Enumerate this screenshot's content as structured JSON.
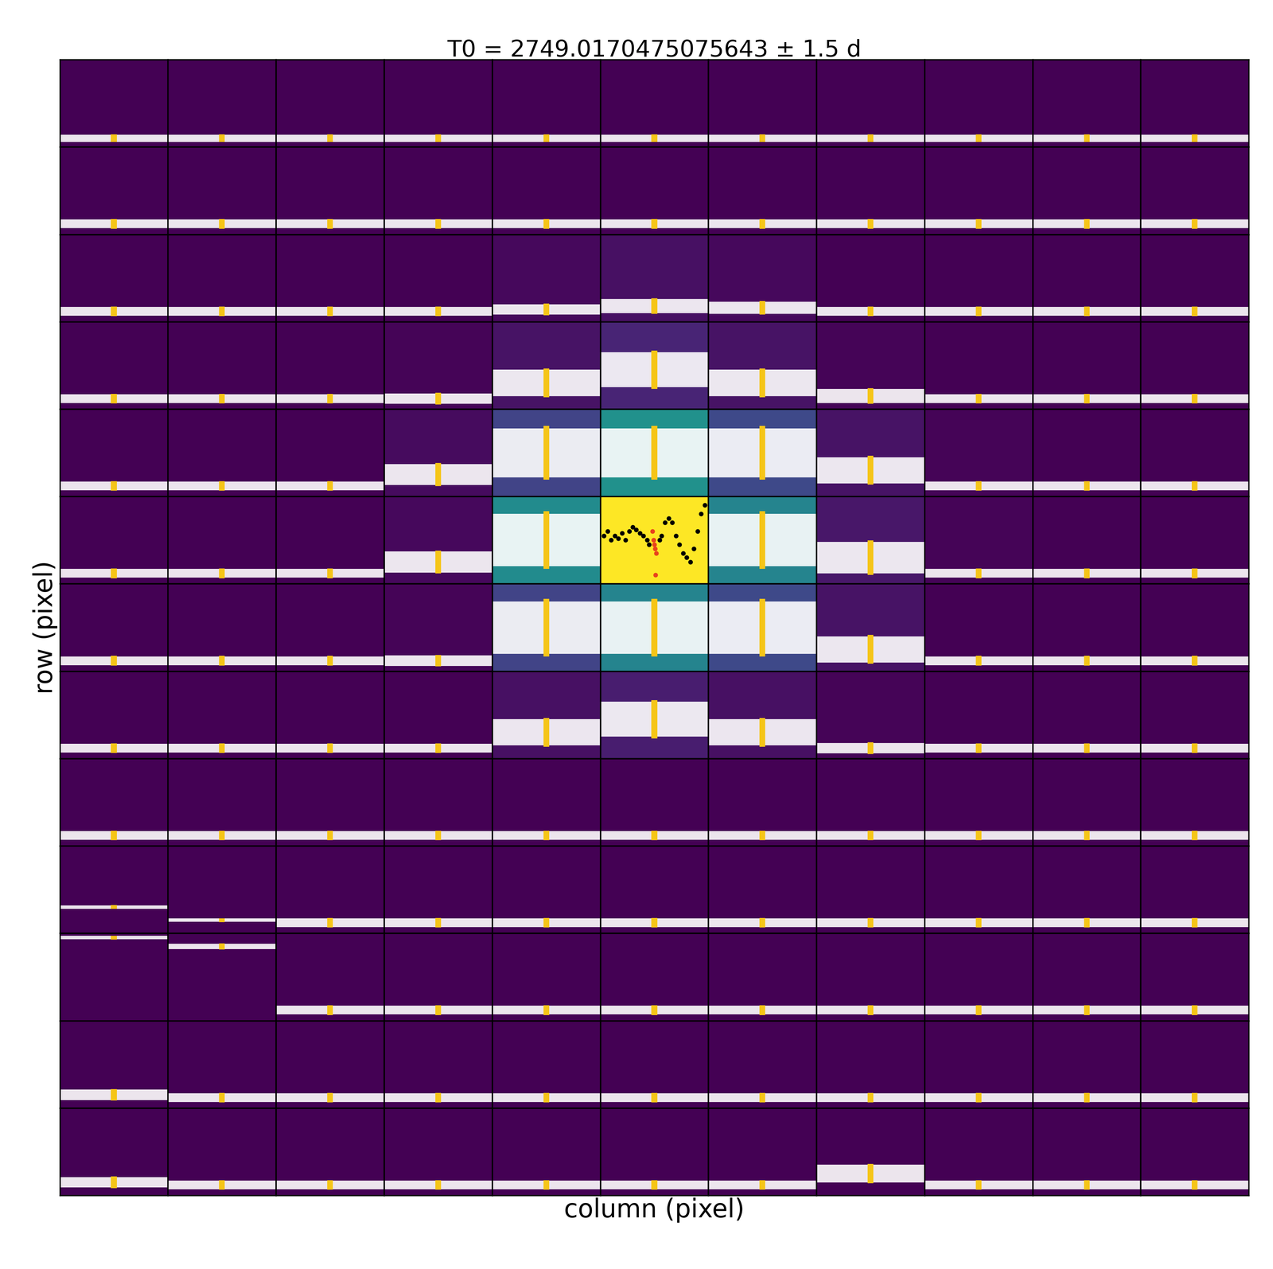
{
  "chart_data": {
    "type": "pixel_grid",
    "title": "T0 = 2749.0170475075643 ± 1.5 d",
    "xlabel": "column (pixel)",
    "ylabel": "row (pixel)",
    "tick_labels": false,
    "xlim": [
      -1.5,
      1.5
    ],
    "ylim": [
      0,
      1
    ],
    "color_range": [
      0,
      1
    ],
    "cells": [
      [
        0,
        0,
        0,
        0,
        0,
        0,
        0,
        0,
        0,
        0,
        0
      ],
      [
        0,
        0,
        0,
        0,
        0,
        0,
        0,
        0,
        0,
        0,
        0
      ],
      [
        0,
        0,
        0,
        0,
        0.02,
        0.04,
        0.02,
        0,
        0,
        0,
        0
      ],
      [
        0,
        0,
        0,
        0.01,
        0.05,
        0.1,
        0.05,
        0.01,
        0,
        0,
        0
      ],
      [
        0,
        0,
        0,
        0.03,
        0.2,
        0.5,
        0.22,
        0.05,
        0.01,
        0,
        0
      ],
      [
        0,
        0,
        0,
        0.02,
        0.48,
        1.0,
        0.45,
        0.06,
        0.01,
        0,
        0
      ],
      [
        0,
        0,
        0,
        0.01,
        0.2,
        0.45,
        0.22,
        0.05,
        0,
        0,
        0
      ],
      [
        0,
        0,
        0,
        0,
        0.04,
        0.08,
        0.04,
        0.01,
        0,
        0,
        0
      ],
      [
        0,
        0,
        0,
        0,
        0,
        0,
        0,
        0,
        0,
        0,
        0
      ],
      [
        0,
        0,
        0,
        0,
        0,
        0,
        0,
        0,
        0,
        0,
        0
      ],
      [
        0,
        0,
        0,
        0,
        0,
        0,
        0,
        0,
        0,
        0,
        0
      ],
      [
        0,
        0,
        0,
        0,
        0,
        0,
        0,
        0,
        0,
        0,
        0
      ],
      [
        0,
        0,
        0,
        0,
        0,
        0,
        0,
        0,
        0,
        0,
        0
      ]
    ],
    "level": [
      [
        0.1,
        0.1,
        0.1,
        0.1,
        0.1,
        0.1,
        0.1,
        0.1,
        0.1,
        0.1,
        0.1
      ],
      [
        0.12,
        0.12,
        0.12,
        0.12,
        0.12,
        0.12,
        0.12,
        0.12,
        0.12,
        0.12,
        0.12
      ],
      [
        0.12,
        0.12,
        0.12,
        0.12,
        0.14,
        0.18,
        0.16,
        0.12,
        0.12,
        0.12,
        0.12
      ],
      [
        0.12,
        0.12,
        0.12,
        0.12,
        0.3,
        0.45,
        0.3,
        0.15,
        0.12,
        0.12,
        0.12
      ],
      [
        0.12,
        0.12,
        0.12,
        0.25,
        0.5,
        0.5,
        0.5,
        0.3,
        0.12,
        0.12,
        0.12
      ],
      [
        0.12,
        0.12,
        0.12,
        0.25,
        0.5,
        null,
        0.5,
        0.3,
        0.12,
        0.12,
        0.12
      ],
      [
        0.12,
        0.12,
        0.12,
        0.12,
        0.5,
        0.5,
        0.5,
        0.25,
        0.12,
        0.12,
        0.12
      ],
      [
        0.12,
        0.12,
        0.12,
        0.12,
        0.3,
        0.45,
        0.3,
        0.12,
        0.12,
        0.12,
        0.12
      ],
      [
        0.12,
        0.12,
        0.12,
        0.12,
        0.12,
        0.12,
        0.12,
        0.12,
        0.12,
        0.12,
        0.12
      ],
      [
        0.3,
        0.15,
        0.12,
        0.12,
        0.12,
        0.12,
        0.12,
        0.12,
        0.12,
        0.12,
        0.12
      ],
      [
        0.95,
        0.85,
        0.12,
        0.12,
        0.12,
        0.12,
        0.12,
        0.12,
        0.12,
        0.12,
        0.12
      ],
      [
        0.15,
        0.12,
        0.12,
        0.12,
        0.12,
        0.12,
        0.12,
        0.12,
        0.12,
        0.12,
        0.12
      ],
      [
        0.15,
        0.12,
        0.12,
        0.12,
        0.12,
        0.12,
        0.12,
        0.25,
        0.12,
        0.12,
        0.12
      ]
    ],
    "spread": [
      [
        0.04,
        0.04,
        0.04,
        0.04,
        0.04,
        0.04,
        0.04,
        0.04,
        0.04,
        0.04,
        0.04
      ],
      [
        0.05,
        0.05,
        0.05,
        0.05,
        0.05,
        0.05,
        0.05,
        0.05,
        0.05,
        0.05,
        0.05
      ],
      [
        0.05,
        0.05,
        0.05,
        0.05,
        0.06,
        0.08,
        0.07,
        0.05,
        0.05,
        0.05,
        0.05
      ],
      [
        0.05,
        0.05,
        0.05,
        0.06,
        0.15,
        0.2,
        0.15,
        0.08,
        0.05,
        0.05,
        0.05
      ],
      [
        0.05,
        0.05,
        0.05,
        0.12,
        0.28,
        0.28,
        0.28,
        0.15,
        0.05,
        0.05,
        0.05
      ],
      [
        0.05,
        0.05,
        0.05,
        0.12,
        0.3,
        null,
        0.3,
        0.18,
        0.05,
        0.05,
        0.05
      ],
      [
        0.05,
        0.05,
        0.05,
        0.06,
        0.3,
        0.3,
        0.3,
        0.15,
        0.05,
        0.05,
        0.05
      ],
      [
        0.05,
        0.05,
        0.05,
        0.05,
        0.15,
        0.2,
        0.15,
        0.06,
        0.05,
        0.05,
        0.05
      ],
      [
        0.05,
        0.05,
        0.05,
        0.05,
        0.05,
        0.05,
        0.05,
        0.05,
        0.05,
        0.05,
        0.05
      ],
      [
        0.02,
        0.02,
        0.05,
        0.05,
        0.05,
        0.05,
        0.05,
        0.05,
        0.05,
        0.05,
        0.05
      ],
      [
        0.02,
        0.03,
        0.05,
        0.05,
        0.05,
        0.05,
        0.05,
        0.05,
        0.05,
        0.05,
        0.05
      ],
      [
        0.06,
        0.05,
        0.05,
        0.05,
        0.05,
        0.05,
        0.05,
        0.05,
        0.05,
        0.05,
        0.05
      ],
      [
        0.06,
        0.05,
        0.05,
        0.05,
        0.05,
        0.05,
        0.05,
        0.1,
        0.05,
        0.05,
        0.05
      ]
    ],
    "transit_halfwidth": 0.08,
    "center_curve": {
      "x": [
        -1.4,
        -1.3,
        -1.2,
        -1.1,
        -1.0,
        -0.9,
        -0.8,
        -0.7,
        -0.6,
        -0.5,
        -0.4,
        -0.3,
        -0.2,
        -0.15,
        0.15,
        0.2,
        0.3,
        0.4,
        0.5,
        0.6,
        0.7,
        0.8,
        0.9,
        1.0,
        1.1,
        1.2,
        1.3,
        1.4
      ],
      "y": [
        0.55,
        0.6,
        0.5,
        0.55,
        0.52,
        0.58,
        0.5,
        0.6,
        0.65,
        0.62,
        0.58,
        0.55,
        0.5,
        0.45,
        0.5,
        0.55,
        0.7,
        0.75,
        0.7,
        0.55,
        0.45,
        0.35,
        0.3,
        0.25,
        0.4,
        0.6,
        0.8,
        0.9
      ],
      "color": "#000000",
      "transit_x": [
        -0.05,
        -0.02,
        0,
        0.02,
        0.05,
        0.03
      ],
      "transit_y": [
        0.6,
        0.5,
        0.45,
        0.4,
        0.35,
        0.1
      ],
      "transit_color": "#e8421c"
    },
    "band_color": "#ffffff",
    "transit_color": "#f5c518"
  }
}
